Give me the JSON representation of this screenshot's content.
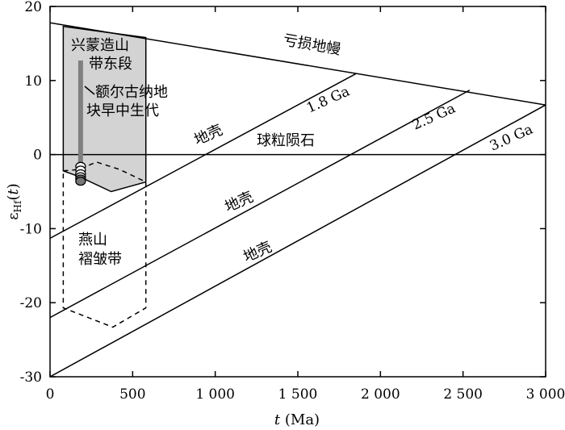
{
  "chart_data": {
    "type": "line",
    "xlabel": "t (Ma)",
    "xlabel_italic": "t",
    "xlabel_unit": " (Ma)",
    "ylabel": "εHf(t)",
    "ylabel_main": "ε",
    "ylabel_sub": "Hf",
    "ylabel_arg": "t",
    "xlim": [
      0,
      3000
    ],
    "ylim": [
      -30,
      20
    ],
    "x_ticks": [
      0,
      500,
      1000,
      1500,
      2000,
      2500,
      3000
    ],
    "x_tick_labels": [
      "0",
      "500",
      "1 000",
      "1 500",
      "2 000",
      "2 500",
      "3 000"
    ],
    "y_ticks": [
      -30,
      -20,
      -10,
      0,
      10,
      20
    ],
    "y_tick_labels": [
      "-30",
      "-20",
      "-10",
      "0",
      "10",
      "20"
    ],
    "grid": false,
    "reference_lines": [
      {
        "id": "depleted-mantle",
        "label": "亏损地幔",
        "x": [
          0,
          3000
        ],
        "y": [
          17.8,
          6.7
        ]
      },
      {
        "id": "chondrite",
        "label": "球粒陨石",
        "x": [
          0,
          3000
        ],
        "y": [
          0,
          0
        ]
      },
      {
        "id": "crust-1.8",
        "label": "1.8 Ga",
        "x": [
          0,
          1850
        ],
        "y": [
          -11.3,
          10.9
        ]
      },
      {
        "id": "crust-2.5",
        "label": "2.5 Ga",
        "x": [
          0,
          2540
        ],
        "y": [
          -22.0,
          8.7
        ]
      },
      {
        "id": "crust-3.0",
        "label": "3.0 Ga",
        "x": [
          0,
          3000
        ],
        "y": [
          -30,
          6.7
        ]
      }
    ],
    "crust_labels": [
      "地壳",
      "地壳",
      "地壳"
    ],
    "regions": [
      {
        "id": "xingmeng-east",
        "label_lines": [
          "兴蒙造山",
          "带东段"
        ],
        "style": "gray-fill",
        "polygon": [
          [
            80,
            17.3
          ],
          [
            80,
            -2.2
          ],
          [
            180,
            -3.0
          ],
          [
            370,
            -5.0
          ],
          [
            580,
            -3.7
          ],
          [
            580,
            15.8
          ]
        ]
      },
      {
        "id": "yanshan-fold",
        "label_lines": [
          "燕山",
          "褶皱带"
        ],
        "style": "dashed",
        "polygon": [
          [
            80,
            -2.2
          ],
          [
            180,
            -2.0
          ],
          [
            280,
            -1.0
          ],
          [
            420,
            -2.0
          ],
          [
            580,
            -3.7
          ],
          [
            580,
            -20.7
          ],
          [
            380,
            -23.3
          ],
          [
            80,
            -20.7
          ]
        ]
      }
    ],
    "annotations": [
      {
        "id": "ergun-block",
        "label_lines": [
          "额尔古纳地",
          "块早中生代"
        ]
      }
    ],
    "ergun_bar": {
      "x": 185,
      "y_range": [
        -2.5,
        12.7
      ]
    },
    "samples": {
      "x": 185,
      "y": [
        -1.6,
        -2.1,
        -2.6,
        -3.0,
        -3.3,
        -3.6
      ],
      "fills": [
        "#ffffff",
        "#ffffff",
        "#ffffff",
        "#ffffff",
        "#777777",
        "#777777"
      ]
    }
  }
}
